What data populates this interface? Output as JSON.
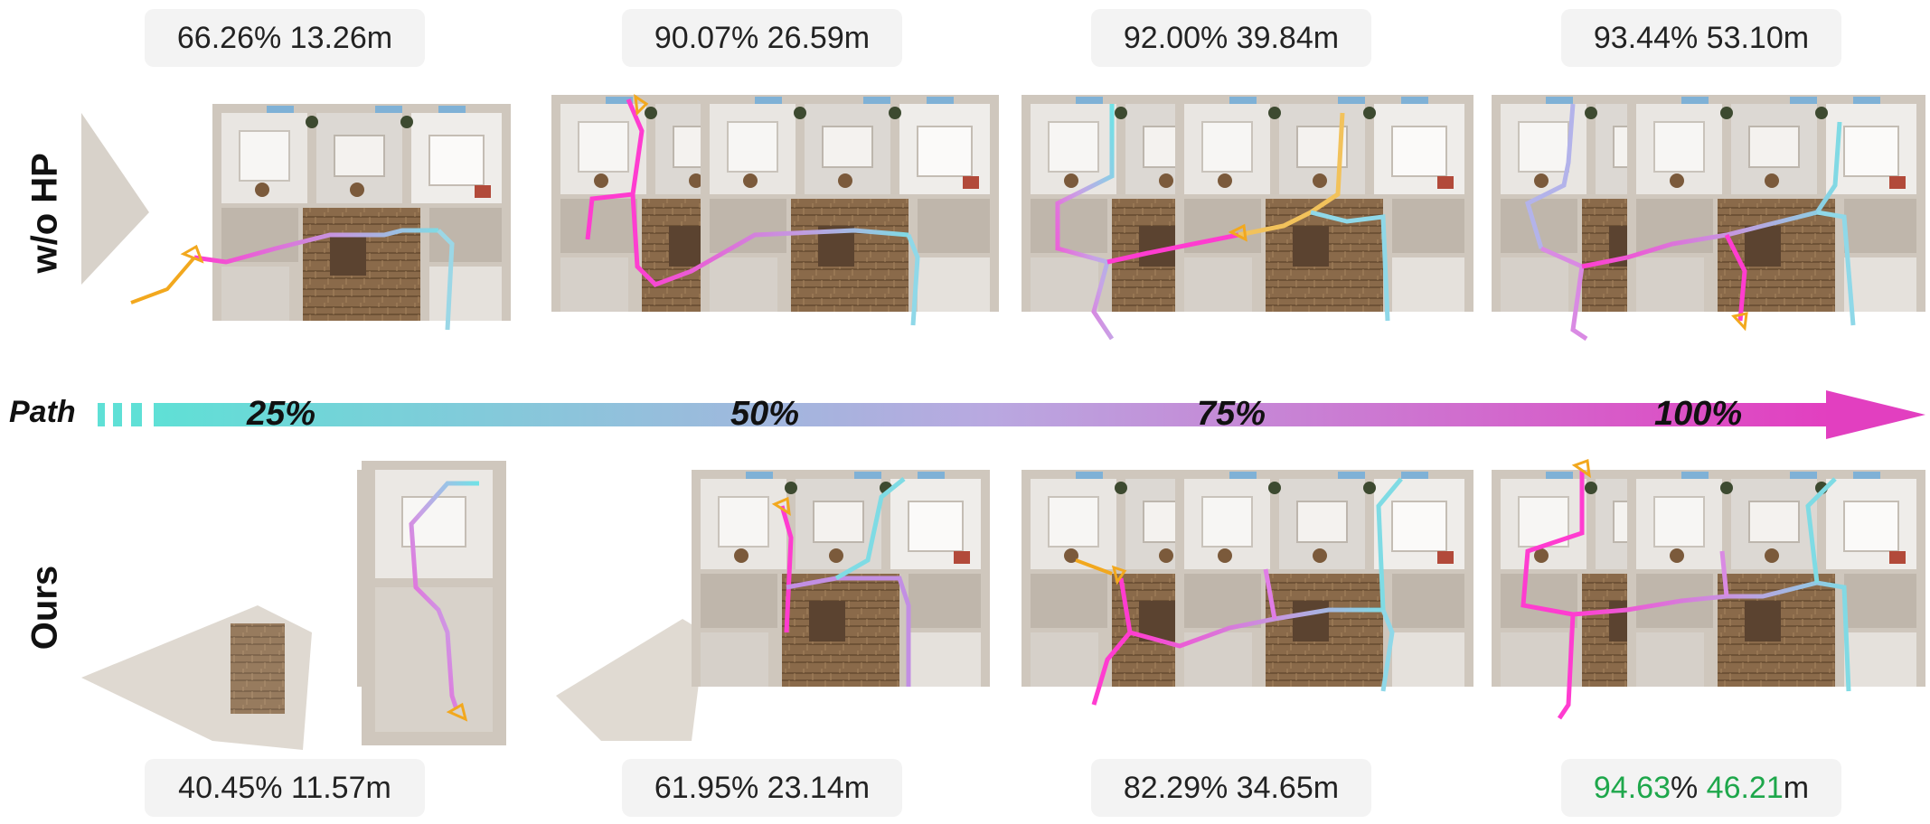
{
  "rows": {
    "top": {
      "label": "w/o HP",
      "stats": [
        {
          "pct": "66.26",
          "dist": "13.26"
        },
        {
          "pct": "90.07",
          "dist": "26.59"
        },
        {
          "pct": "92.00",
          "dist": "39.84"
        },
        {
          "pct": "93.44",
          "dist": "53.10"
        }
      ]
    },
    "bottom": {
      "label": "Ours",
      "stats": [
        {
          "pct": "40.45",
          "dist": "11.57"
        },
        {
          "pct": "61.95",
          "dist": "23.14"
        },
        {
          "pct": "82.29",
          "dist": "34.65"
        },
        {
          "pct": "94.63",
          "dist": "46.21"
        }
      ]
    }
  },
  "path_bar": {
    "label": "Path",
    "ticks": [
      "25%",
      "50%",
      "75%",
      "100%"
    ],
    "start_color": "#5fe0d6",
    "mid_color": "#b9a8e0",
    "end_color": "#e23fc0"
  },
  "units": {
    "percent": "%",
    "meters": "m"
  },
  "colors": {
    "best": "#1ea74b",
    "trajectory_end": "#ff3cd0",
    "trajectory_start": "#6fe3e6",
    "agent": "#f2a81e"
  }
}
